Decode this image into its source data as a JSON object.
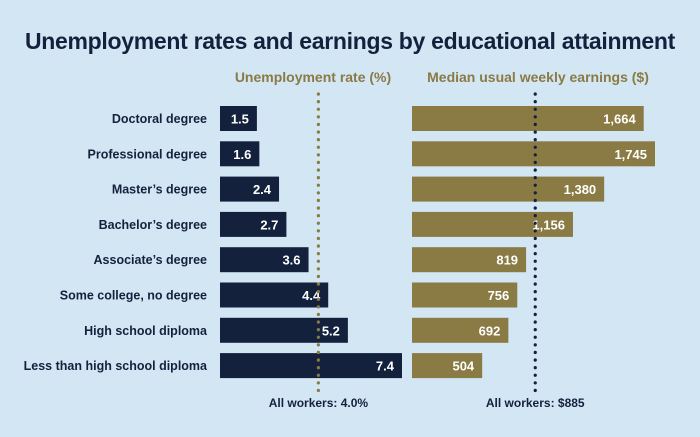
{
  "title": "Unemployment rates and earnings by educational attainment",
  "colors": {
    "background": "#d3e6f4",
    "title_text": "#14213d",
    "unemployment_bar": "#14213d",
    "earnings_bar": "#8a7a43",
    "header_text": "#8a7a43",
    "bar_label": "#ffffff",
    "reference_unemployment": "#8a7a43",
    "reference_earnings": "#14213d"
  },
  "chart_data": [
    {
      "type": "bar",
      "orientation": "horizontal",
      "title": "Unemployment rate (%)",
      "categories": [
        "Doctoral degree",
        "Professional degree",
        "Master’s degree",
        "Bachelor’s degree",
        "Associate’s degree",
        "Some college, no degree",
        "High school diploma",
        "Less than high school diploma"
      ],
      "values": [
        1.5,
        1.6,
        2.4,
        2.7,
        3.6,
        4.4,
        5.2,
        7.4
      ],
      "value_labels": [
        "1.5",
        "1.6",
        "2.4",
        "2.7",
        "3.6",
        "4.4",
        "5.2",
        "7.4"
      ],
      "xlim": [
        0,
        7.4
      ],
      "reference_line": {
        "value": 4.0,
        "label": "All workers: 4.0%",
        "style": "dotted"
      },
      "grid": false,
      "legend": "none"
    },
    {
      "type": "bar",
      "orientation": "horizontal",
      "title": "Median usual weekly earnings ($)",
      "categories": [
        "Doctoral degree",
        "Professional degree",
        "Master’s degree",
        "Bachelor’s degree",
        "Associate’s degree",
        "Some college, no degree",
        "High school diploma",
        "Less than high school diploma"
      ],
      "values": [
        1664,
        1745,
        1380,
        1156,
        819,
        756,
        692,
        504
      ],
      "value_labels": [
        "1,664",
        "1,745",
        "1,380",
        "1,156",
        "819",
        "756",
        "692",
        "504"
      ],
      "xlim": [
        0,
        1745
      ],
      "reference_line": {
        "value": 885,
        "label": "All workers: $885",
        "style": "dotted"
      },
      "grid": false,
      "legend": "none"
    }
  ]
}
